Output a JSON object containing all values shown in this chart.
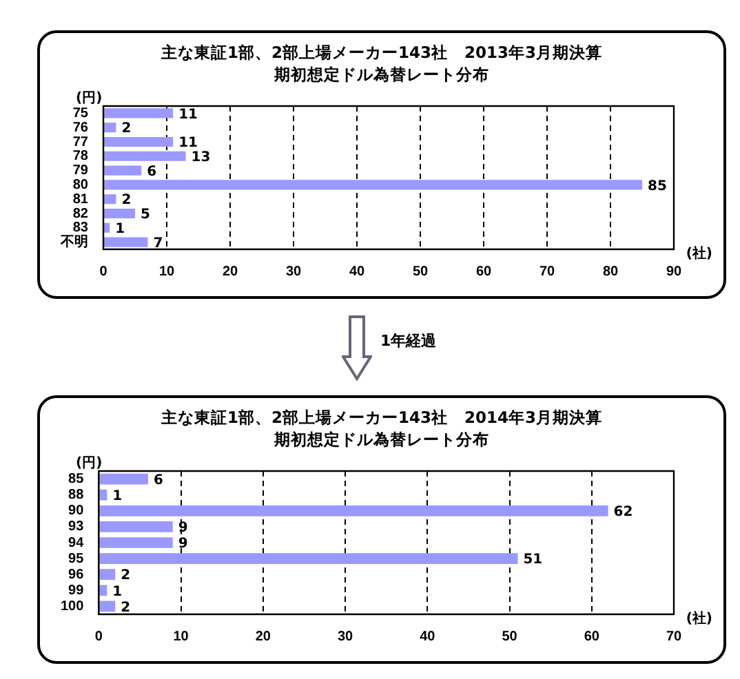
{
  "chart_data": [
    {
      "type": "bar",
      "orientation": "horizontal",
      "title": "主な東証1部、2部上場メーカー143社　2013年3月期決算",
      "subtitle": "期初想定ドル為替レート分布",
      "ylabel": "(円)",
      "xlabel": "(社)",
      "categories": [
        "75",
        "76",
        "77",
        "78",
        "79",
        "80",
        "81",
        "82",
        "83",
        "不明"
      ],
      "values": [
        11,
        2,
        11,
        13,
        6,
        85,
        2,
        5,
        1,
        7
      ],
      "color": "#9999ff",
      "xlim": [
        0,
        90
      ],
      "xticks": [
        0,
        10,
        20,
        30,
        40,
        50,
        60,
        70,
        80,
        90
      ],
      "grid": "x",
      "data_labels": true,
      "legend": false
    },
    {
      "type": "bar",
      "orientation": "horizontal",
      "title": "主な東証1部、2部上場メーカー143社　2014年3月期決算",
      "subtitle": "期初想定ドル為替レート分布",
      "ylabel": "(円)",
      "xlabel": "(社)",
      "annotations": [
        "1年経過"
      ],
      "categories": [
        "85",
        "88",
        "90",
        "93",
        "94",
        "95",
        "96",
        "99",
        "100"
      ],
      "values": [
        6,
        1,
        62,
        9,
        9,
        51,
        2,
        1,
        2
      ],
      "color": "#9999ff",
      "xlim": [
        0,
        70
      ],
      "xticks": [
        0,
        10,
        20,
        30,
        40,
        50,
        60,
        70
      ],
      "grid": "x",
      "data_labels": true,
      "legend": false
    }
  ]
}
